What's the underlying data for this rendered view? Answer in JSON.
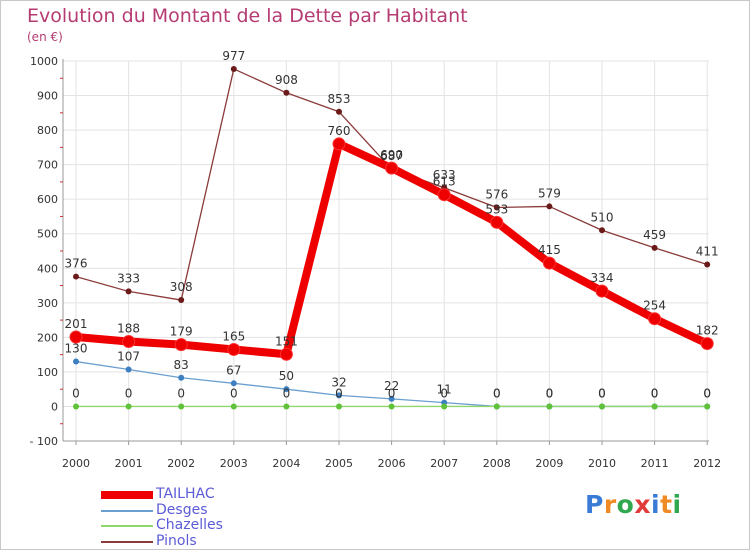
{
  "title": "Evolution du Montant de la Dette par Habitant",
  "subtitle": "(en €)",
  "logo": {
    "text": "Proxiti",
    "letter_colors": [
      "#3a7bd5",
      "#f08a24",
      "#2fa84f",
      "#e03a3a",
      "#3a7bd5",
      "#f08a24",
      "#2fa84f"
    ]
  },
  "chart_data": {
    "type": "line",
    "title": "Evolution du Montant de la Dette par Habitant",
    "ylabel": "(en €)",
    "xlabel": "",
    "x": [
      "2000",
      "2001",
      "2002",
      "2003",
      "2004",
      "2005",
      "2006",
      "2007",
      "2008",
      "2009",
      "2010",
      "2011",
      "2012"
    ],
    "ylim": [
      -100,
      1000
    ],
    "yticks": [
      "1000",
      "900",
      "800",
      "700",
      "600",
      "500",
      "400",
      "300",
      "200",
      "100",
      "0",
      "- 100"
    ],
    "ytick_values": [
      1000,
      900,
      800,
      700,
      600,
      500,
      400,
      300,
      200,
      100,
      0,
      -100
    ],
    "grid": true,
    "legend_position": "bottom-left",
    "series": [
      {
        "name": "TAILHAC",
        "color": "#ee0000",
        "marker": "#ee0000",
        "emphasis": "thick",
        "values": [
          201,
          188,
          179,
          165,
          151,
          760,
          690,
          613,
          533,
          415,
          334,
          254,
          182
        ],
        "labels": [
          "201",
          "188",
          "179",
          "165",
          "151",
          "760",
          "690",
          "613",
          "533",
          "415",
          "334",
          "254",
          "182"
        ]
      },
      {
        "name": "Desges",
        "color": "#6b9fcf",
        "marker": "#3d7fc1",
        "emphasis": "thin",
        "values": [
          130,
          107,
          83,
          67,
          50,
          32,
          22,
          11,
          0,
          0,
          0,
          0,
          0
        ],
        "labels": [
          "130",
          "107",
          "83",
          "67",
          "50",
          "32",
          "22",
          "11",
          "0",
          "0",
          "0",
          "0",
          "0"
        ]
      },
      {
        "name": "Chazelles",
        "color": "#8fd66b",
        "marker": "#5fc23a",
        "emphasis": "thin",
        "values": [
          0,
          0,
          0,
          0,
          0,
          0,
          0,
          0,
          0,
          0,
          0,
          0,
          0
        ],
        "labels": [
          "0",
          "0",
          "0",
          "0",
          "0",
          "0",
          "0",
          "0",
          "0",
          "0",
          "0",
          "0",
          "0"
        ]
      },
      {
        "name": "Pinols",
        "color": "#8b3a3a",
        "marker": "#6b1a1a",
        "emphasis": "thin",
        "values": [
          376,
          333,
          308,
          977,
          908,
          853,
          687,
          633,
          576,
          579,
          510,
          459,
          411
        ],
        "labels": [
          "376",
          "333",
          "308",
          "977",
          "908",
          "853",
          "687",
          "633",
          "576",
          "579",
          "510",
          "459",
          "411"
        ]
      }
    ]
  }
}
